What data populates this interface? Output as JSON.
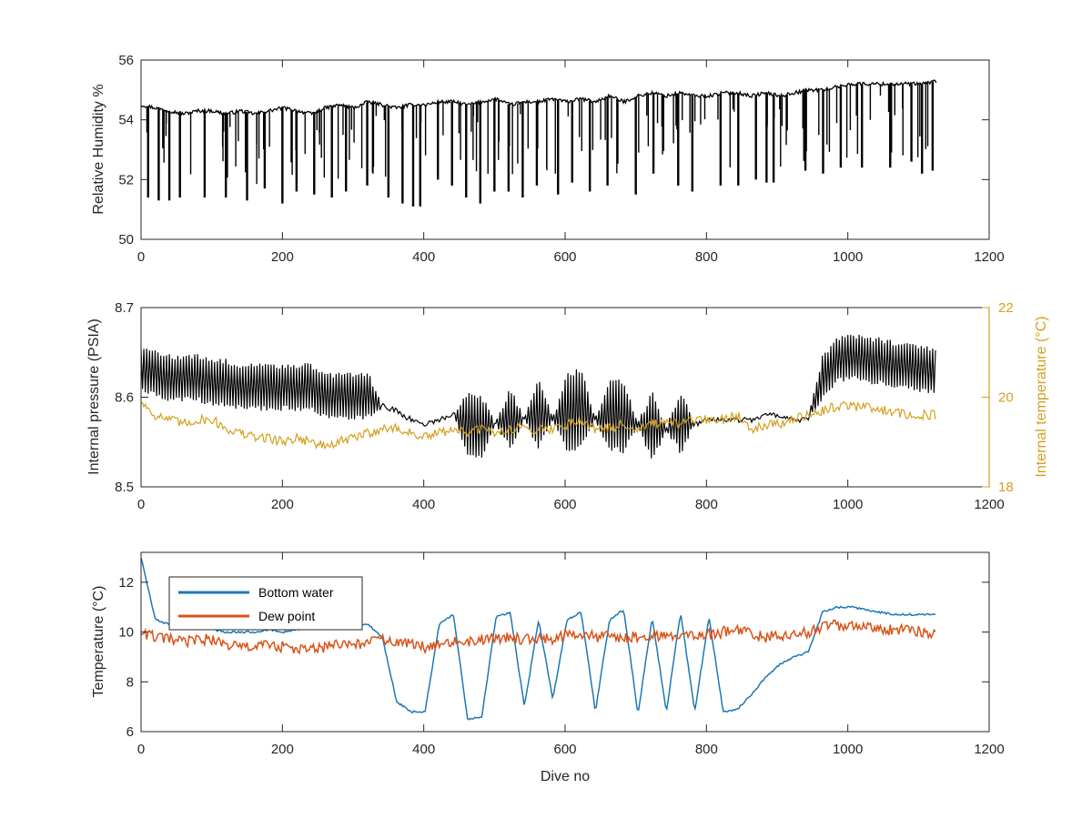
{
  "chart_data": [
    {
      "type": "line",
      "title": "",
      "xlabel": "",
      "ylabel": "Relative Humidity %",
      "xlim": [
        0,
        1200
      ],
      "ylim": [
        50,
        56
      ],
      "xticks": [
        0,
        200,
        400,
        600,
        800,
        1000,
        1200
      ],
      "yticks": [
        50,
        52,
        54,
        56
      ],
      "grid": false,
      "series": [
        {
          "color": "#000000",
          "x_range": [
            0,
            1125
          ],
          "values": [
            54.5,
            54.4,
            54.3,
            54.2,
            54.3,
            54.3,
            54.2,
            54.3,
            54.2,
            54.3,
            54.4,
            54.3,
            54.2,
            54.4,
            54.5,
            54.4,
            54.6,
            54.5,
            54.4,
            54.5,
            54.5,
            54.6,
            54.6,
            54.5,
            54.6,
            54.7,
            54.5,
            54.6,
            54.6,
            54.7,
            54.6,
            54.7,
            54.6,
            54.8,
            54.6,
            54.8,
            54.9,
            54.8,
            54.9,
            54.8,
            54.8,
            54.9,
            54.9,
            54.8,
            54.9,
            54.8,
            54.9,
            55.0,
            55.0,
            55.1,
            55.2,
            55.2,
            55.2,
            55.2,
            55.2,
            55.2,
            55.3
          ],
          "dips": [
            [
              10,
              51.4
            ],
            [
              25,
              51.3
            ],
            [
              40,
              51.3
            ],
            [
              55,
              51.4
            ],
            [
              90,
              51.4
            ],
            [
              120,
              51.4
            ],
            [
              150,
              51.3
            ],
            [
              175,
              51.7
            ],
            [
              200,
              51.2
            ],
            [
              220,
              51.6
            ],
            [
              245,
              51.5
            ],
            [
              270,
              51.4
            ],
            [
              290,
              51.6
            ],
            [
              320,
              51.8
            ],
            [
              350,
              51.4
            ],
            [
              370,
              51.2
            ],
            [
              385,
              51.1
            ],
            [
              395,
              51.1
            ],
            [
              420,
              52.0
            ],
            [
              440,
              51.8
            ],
            [
              460,
              51.4
            ],
            [
              480,
              51.2
            ],
            [
              500,
              51.6
            ],
            [
              520,
              51.6
            ],
            [
              540,
              51.4
            ],
            [
              560,
              51.8
            ],
            [
              590,
              51.5
            ],
            [
              610,
              51.9
            ],
            [
              635,
              51.6
            ],
            [
              660,
              51.8
            ],
            [
              700,
              51.5
            ],
            [
              725,
              52.2
            ],
            [
              760,
              51.8
            ],
            [
              780,
              51.6
            ],
            [
              820,
              51.8
            ],
            [
              845,
              51.8
            ],
            [
              870,
              52.0
            ],
            [
              885,
              51.9
            ],
            [
              895,
              51.9
            ],
            [
              940,
              52.3
            ],
            [
              965,
              52.2
            ],
            [
              990,
              52.4
            ],
            [
              1020,
              52.4
            ],
            [
              1060,
              52.4
            ],
            [
              1090,
              52.6
            ],
            [
              1105,
              52.2
            ],
            [
              1120,
              52.3
            ]
          ]
        }
      ]
    },
    {
      "type": "line",
      "title": "",
      "xlabel": "",
      "ylabel": "Internal pressure (PSIA)",
      "ylabel_right": "Internal temperature (°C)",
      "xlim": [
        0,
        1200
      ],
      "ylim": [
        8.5,
        8.7
      ],
      "ylim_right": [
        18,
        22
      ],
      "xticks": [
        0,
        200,
        400,
        600,
        800,
        1000,
        1200
      ],
      "yticks": [
        8.5,
        8.6,
        8.7
      ],
      "yticks_right": [
        18,
        20,
        22
      ],
      "grid": false,
      "series": [
        {
          "axis": "left",
          "color": "#000000",
          "x_range": [
            0,
            1125
          ],
          "values": [
            8.63,
            8.625,
            8.62,
            8.62,
            8.62,
            8.615,
            8.615,
            8.61,
            8.61,
            8.61,
            8.61,
            8.61,
            8.61,
            8.6,
            8.6,
            8.6,
            8.6,
            8.59,
            8.585,
            8.575,
            8.57,
            8.575,
            8.58,
            8.57,
            8.565,
            8.57,
            8.575,
            8.575,
            8.58,
            8.575,
            8.58,
            8.585,
            8.575,
            8.58,
            8.575,
            8.57,
            8.565,
            8.565,
            8.57,
            8.57,
            8.575,
            8.575,
            8.575,
            8.575,
            8.58,
            8.58,
            8.575,
            8.575,
            8.62,
            8.64,
            8.645,
            8.64,
            8.64,
            8.635,
            8.635,
            8.63,
            8.63
          ],
          "spread": [
            0.025,
            0.025,
            0.025,
            0.025,
            0.025,
            0.025,
            0.025,
            0.025,
            0.025,
            0.025,
            0.025,
            0.025,
            0.025,
            0.025,
            0.025,
            0.025,
            0.025,
            0.0,
            0.0,
            0.0,
            0.0,
            0.0,
            0.0,
            0.035,
            0.035,
            0.0,
            0.035,
            0.0,
            0.04,
            0.0,
            0.045,
            0.045,
            0.0,
            0.04,
            0.04,
            0.0,
            0.04,
            0.0,
            0.035,
            0.0,
            0.0,
            0.0,
            0.0,
            0.0,
            0.0,
            0.0,
            0.0,
            0.0,
            0.025,
            0.025,
            0.025,
            0.025,
            0.025,
            0.025,
            0.025,
            0.025,
            0.025
          ]
        },
        {
          "axis": "right",
          "color": "#d4a020",
          "x_range": [
            0,
            1125
          ],
          "values": [
            19.9,
            19.6,
            19.5,
            19.4,
            19.5,
            19.5,
            19.3,
            19.2,
            19.1,
            19.1,
            19.0,
            19.1,
            19.0,
            18.9,
            19.0,
            19.1,
            19.2,
            19.3,
            19.3,
            19.2,
            19.1,
            19.2,
            19.3,
            19.2,
            19.3,
            19.2,
            19.3,
            19.3,
            19.3,
            19.3,
            19.4,
            19.5,
            19.3,
            19.3,
            19.4,
            19.3,
            19.4,
            19.4,
            19.4,
            19.5,
            19.5,
            19.5,
            19.6,
            19.3,
            19.4,
            19.4,
            19.5,
            19.6,
            19.7,
            19.8,
            19.8,
            19.8,
            19.7,
            19.7,
            19.6,
            19.6,
            19.6
          ]
        }
      ]
    },
    {
      "type": "line",
      "title": "",
      "xlabel": "Dive no",
      "ylabel": "Temperature (°C)",
      "xlim": [
        0,
        1200
      ],
      "ylim": [
        6,
        13.2
      ],
      "xticks": [
        0,
        200,
        400,
        600,
        800,
        1000,
        1200
      ],
      "yticks": [
        6,
        8,
        10,
        12
      ],
      "grid": false,
      "legend": "top-left",
      "series": [
        {
          "name": "Bottom water",
          "color": "#1f77b4",
          "x_range": [
            0,
            1125
          ],
          "values": [
            13.0,
            10.5,
            10.3,
            10.3,
            10.2,
            10.1,
            10.0,
            10.0,
            10.0,
            10.1,
            10.0,
            10.1,
            10.2,
            10.2,
            10.2,
            10.3,
            10.3,
            9.8,
            7.2,
            6.8,
            6.8,
            10.3,
            10.7,
            6.5,
            6.6,
            10.6,
            10.8,
            7.0,
            10.5,
            7.3,
            10.5,
            10.8,
            6.8,
            10.5,
            10.9,
            6.7,
            10.6,
            6.8,
            10.8,
            6.8,
            10.6,
            6.8,
            6.9,
            7.5,
            8.2,
            8.7,
            9.0,
            9.2,
            10.8,
            11.0,
            11.0,
            10.9,
            10.8,
            10.7,
            10.7,
            10.7,
            10.7
          ]
        },
        {
          "name": "Dew point",
          "color": "#d95319",
          "x_range": [
            0,
            1125
          ],
          "values": [
            10.0,
            9.8,
            9.7,
            9.6,
            9.7,
            9.7,
            9.5,
            9.4,
            9.4,
            9.5,
            9.4,
            9.3,
            9.3,
            9.4,
            9.5,
            9.5,
            9.6,
            9.7,
            9.6,
            9.5,
            9.4,
            9.6,
            9.6,
            9.6,
            9.7,
            9.7,
            9.8,
            9.7,
            9.8,
            9.7,
            9.9,
            9.9,
            9.8,
            9.8,
            9.8,
            9.8,
            9.9,
            9.8,
            9.8,
            9.9,
            9.9,
            10.0,
            10.1,
            9.9,
            9.8,
            9.9,
            9.9,
            10.0,
            10.2,
            10.3,
            10.2,
            10.2,
            10.1,
            10.1,
            10.1,
            10.0,
            10.0
          ]
        }
      ]
    }
  ]
}
